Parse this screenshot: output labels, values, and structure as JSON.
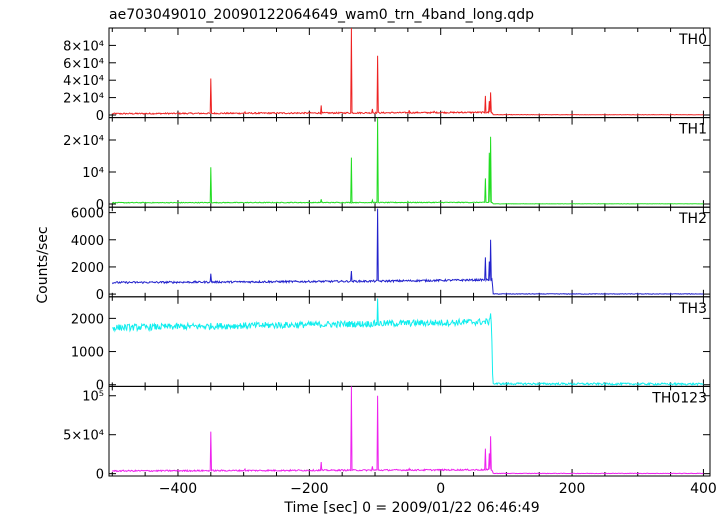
{
  "file_title": "ae703049010_20090122064649_wam0_trn_4band_long.qdp",
  "chart_data": {
    "type": "line",
    "xlabel": "Time [sec] 0 = 2009/01/22 06:46:49",
    "ylabel": "Counts/sec",
    "xlim": [
      -505,
      410
    ],
    "x_ticks": [
      -400,
      -200,
      0,
      200,
      400
    ],
    "x_tick_labels": [
      "−400",
      "−200",
      "0",
      "200",
      "400"
    ],
    "panels": [
      {
        "name": "TH0",
        "color": "#ee2222",
        "ylim": [
          -3000,
          100000
        ],
        "y_ticks": [
          0,
          20000,
          40000,
          60000,
          80000
        ],
        "y_tick_labels": [
          "0",
          "2×10⁴",
          "4×10⁴",
          "6×10⁴",
          "8×10⁴"
        ],
        "baseline": [
          [
            -500,
            1500
          ],
          [
            -300,
            2000
          ],
          [
            -100,
            2500
          ],
          [
            70,
            3000
          ],
          [
            78,
            3000
          ],
          [
            80,
            300
          ],
          [
            410,
            300
          ]
        ],
        "noise": 800,
        "spikes": [
          [
            -350,
            42000
          ],
          [
            -298,
            3500
          ],
          [
            -182,
            11000
          ],
          [
            -136,
            100000
          ],
          [
            -104,
            7000
          ],
          [
            -96,
            68000
          ],
          [
            -48,
            5500
          ],
          [
            -10,
            4200
          ],
          [
            32,
            3800
          ],
          [
            68,
            22000
          ],
          [
            74,
            16000
          ],
          [
            76,
            26000
          ]
        ]
      },
      {
        "name": "TH1",
        "color": "#22dd22",
        "ylim": [
          -1000,
          27000
        ],
        "y_ticks": [
          0,
          10000,
          20000
        ],
        "y_tick_labels": [
          "0",
          "10⁴",
          "2×10⁴"
        ],
        "baseline": [
          [
            -500,
            400
          ],
          [
            78,
            500
          ],
          [
            80,
            50
          ],
          [
            410,
            50
          ]
        ],
        "noise": 120,
        "spikes": [
          [
            -350,
            11500
          ],
          [
            -182,
            1500
          ],
          [
            -136,
            14500
          ],
          [
            -104,
            1200
          ],
          [
            -96,
            27000
          ],
          [
            -50,
            800
          ],
          [
            68,
            8000
          ],
          [
            74,
            16000
          ],
          [
            76,
            21000
          ]
        ]
      },
      {
        "name": "TH2",
        "color": "#2222cc",
        "ylim": [
          -200,
          6400
        ],
        "y_ticks": [
          0,
          2000,
          4000,
          6000
        ],
        "y_tick_labels": [
          "0",
          "2000",
          "4000",
          "6000"
        ],
        "baseline": [
          [
            -500,
            850
          ],
          [
            -100,
            950
          ],
          [
            70,
            1050
          ],
          [
            78,
            1050
          ],
          [
            80,
            10
          ],
          [
            410,
            10
          ]
        ],
        "noise": 70,
        "spikes": [
          [
            -350,
            1500
          ],
          [
            -136,
            1700
          ],
          [
            -96,
            6300
          ],
          [
            68,
            2700
          ],
          [
            74,
            2400
          ],
          [
            76,
            4000
          ]
        ]
      },
      {
        "name": "TH3",
        "color": "#11eeee",
        "ylim": [
          -50,
          2650
        ],
        "y_ticks": [
          0,
          1000,
          2000
        ],
        "y_tick_labels": [
          "0",
          "1000",
          "2000"
        ],
        "baseline": [
          [
            -500,
            1720
          ],
          [
            -200,
            1810
          ],
          [
            0,
            1870
          ],
          [
            77,
            1900
          ],
          [
            78,
            1400
          ],
          [
            79,
            350
          ],
          [
            80,
            30
          ],
          [
            410,
            20
          ]
        ],
        "noise": 100,
        "spikes": [
          [
            -96,
            2600
          ],
          [
            76,
            2150
          ]
        ]
      },
      {
        "name": "TH0123",
        "color": "#ee22ee",
        "ylim": [
          -3000,
          112000
        ],
        "y_ticks": [
          0,
          50000,
          100000
        ],
        "y_tick_labels": [
          "0",
          "5×10⁴",
          "10⁵"
        ],
        "baseline": [
          [
            -500,
            3500
          ],
          [
            -100,
            4500
          ],
          [
            78,
            5000
          ],
          [
            80,
            300
          ],
          [
            410,
            300
          ]
        ],
        "noise": 900,
        "spikes": [
          [
            -350,
            54000
          ],
          [
            -298,
            6000
          ],
          [
            -182,
            15000
          ],
          [
            -136,
            112000
          ],
          [
            -104,
            9500
          ],
          [
            -96,
            100000
          ],
          [
            -48,
            6500
          ],
          [
            68,
            32000
          ],
          [
            74,
            26000
          ],
          [
            76,
            48000
          ]
        ]
      }
    ]
  }
}
